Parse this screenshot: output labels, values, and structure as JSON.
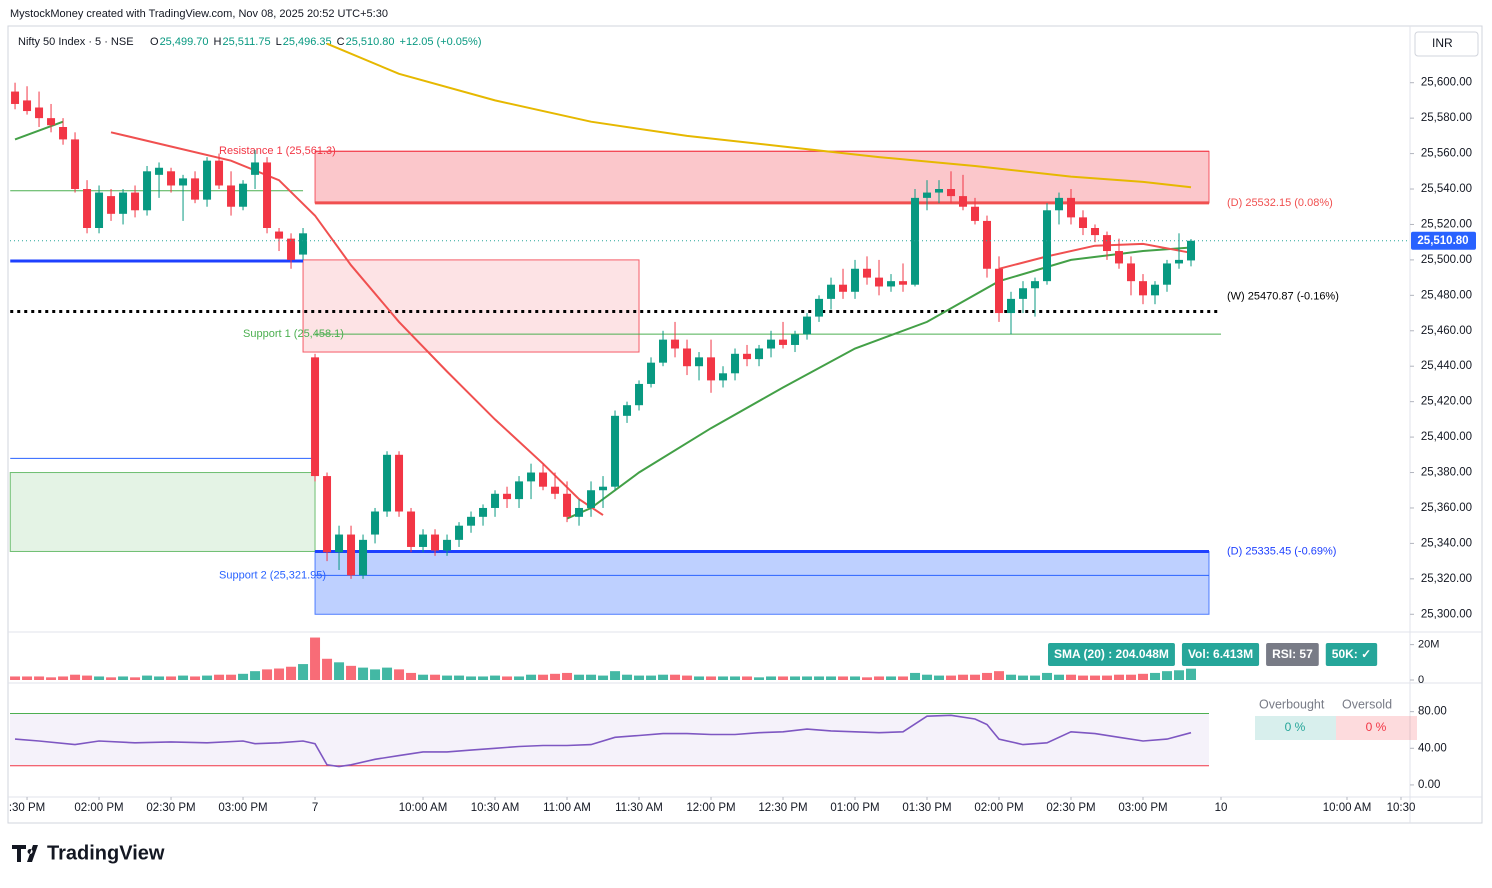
{
  "header": {
    "credit": "MystockMoney created with TradingView.com, Nov 08, 2025 20:52 UTC+5:30",
    "logo": "TradingView"
  },
  "chart_data": [
    {
      "type": "candlestick",
      "title": "Nifty 50 Index · 5 · NSE",
      "ohlc_legend": [
        {
          "label": "O",
          "value": "25,499.70"
        },
        {
          "label": "H",
          "value": "25,511.75"
        },
        {
          "label": "L",
          "value": "25,496.35"
        },
        {
          "label": "C",
          "value": "25,510.80"
        },
        {
          "label": "",
          "value": "+12.05 (+0.05%)"
        }
      ],
      "currency": "INR",
      "last_price_label": "25,510.80",
      "x": [
        0,
        1,
        2,
        3,
        4,
        5,
        6,
        7,
        8,
        9,
        10,
        11,
        12,
        13,
        14,
        15,
        16,
        17,
        18,
        19,
        20,
        21,
        22,
        23,
        24,
        25,
        26,
        27,
        28,
        29,
        30,
        31,
        32,
        33,
        34,
        35,
        36,
        37,
        38,
        39,
        40,
        41,
        42,
        43,
        44,
        45,
        46,
        47,
        48,
        49,
        50,
        51,
        52,
        53,
        54,
        55,
        56,
        57,
        58,
        59,
        60,
        61,
        62,
        63,
        64,
        65,
        66,
        67,
        68,
        69,
        70,
        71,
        72,
        73,
        74,
        75,
        76,
        77,
        78,
        79,
        80,
        81,
        82,
        83,
        84,
        85,
        86,
        87,
        88,
        89,
        90,
        91,
        92,
        93,
        94,
        95,
        96,
        97,
        98
      ],
      "open": [
        25595,
        25590,
        25586,
        25580,
        25575,
        25568,
        25540,
        25518,
        25536,
        25526,
        25538,
        25528,
        25548,
        25550,
        25542,
        25546,
        25534,
        25556,
        25542,
        25530,
        25548,
        25555,
        25516,
        25512,
        25503,
        25445,
        25378,
        25335,
        25345,
        25322,
        25345,
        25358,
        25390,
        25358,
        25338,
        25345,
        25336,
        25342,
        25350,
        25355,
        25360,
        25368,
        25365,
        25375,
        25380,
        25372,
        25368,
        25355,
        25360,
        25370,
        25372,
        25412,
        25418,
        25430,
        25442,
        25455,
        25450,
        25440,
        25445,
        25432,
        25436,
        25447,
        25444,
        25450,
        25455,
        25452,
        25458,
        25468,
        25478,
        25486,
        25482,
        25495,
        25490,
        25485,
        25488,
        25486,
        25535,
        25538,
        25540,
        25536,
        25530,
        25522,
        25495,
        25470,
        25478,
        25484,
        25488,
        25528,
        25535,
        25524,
        25518,
        25514,
        25505,
        25498,
        25488,
        25480,
        25486,
        25498,
        25499.7
      ],
      "high": [
        25600,
        25598,
        25595,
        25588,
        25580,
        25572,
        25545,
        25542,
        25540,
        25540,
        25542,
        25553,
        25555,
        25552,
        25548,
        25550,
        25558,
        25560,
        25550,
        25545,
        25562,
        25558,
        25518,
        25515,
        25518,
        25447,
        25380,
        25350,
        25350,
        25345,
        25360,
        25392,
        25392,
        25360,
        25348,
        25348,
        25345,
        25352,
        25358,
        25362,
        25370,
        25372,
        25378,
        25385,
        25385,
        25380,
        25375,
        25365,
        25375,
        25378,
        25415,
        25420,
        25432,
        25445,
        25460,
        25465,
        25455,
        25448,
        25455,
        25440,
        25450,
        25452,
        25452,
        25460,
        25465,
        25460,
        25470,
        25480,
        25490,
        25495,
        25500,
        25502,
        25500,
        25492,
        25498,
        25540,
        25545,
        25545,
        25550,
        25548,
        25535,
        25525,
        25502,
        25482,
        25488,
        25490,
        25532,
        25538,
        25540,
        25528,
        25520,
        25516,
        25512,
        25502,
        25492,
        25488,
        25500,
        25515,
        25511.75
      ],
      "low": [
        25585,
        25582,
        25575,
        25572,
        25565,
        25538,
        25515,
        25515,
        25522,
        25520,
        25524,
        25525,
        25535,
        25538,
        25522,
        25532,
        25530,
        25540,
        25525,
        25528,
        25540,
        25515,
        25505,
        25495,
        25500,
        25375,
        25330,
        25325,
        25320,
        25320,
        25340,
        25355,
        25355,
        25335,
        25335,
        25333,
        25333,
        25338,
        25346,
        25350,
        25355,
        25360,
        25360,
        25365,
        25370,
        25365,
        25352,
        25350,
        25355,
        25360,
        25370,
        25408,
        25415,
        25428,
        25440,
        25445,
        25435,
        25432,
        25425,
        25428,
        25432,
        25440,
        25440,
        25445,
        25450,
        25448,
        25455,
        25465,
        25472,
        25478,
        25478,
        25486,
        25480,
        25482,
        25482,
        25485,
        25528,
        25532,
        25532,
        25528,
        25520,
        25490,
        25465,
        25458,
        25470,
        25468,
        25486,
        25520,
        25520,
        25514,
        25510,
        25500,
        25495,
        25480,
        25475,
        25475,
        25482,
        25495,
        25496.35
      ],
      "close": [
        25588,
        25584,
        25580,
        25576,
        25568,
        25540,
        25518,
        25538,
        25526,
        25538,
        25528,
        25550,
        25552,
        25542,
        25546,
        25534,
        25556,
        25542,
        25530,
        25543,
        25555,
        25518,
        25512,
        25500,
        25515,
        25378,
        25335,
        25345,
        25322,
        25342,
        25358,
        25390,
        25358,
        25338,
        25345,
        25336,
        25342,
        25350,
        25355,
        25360,
        25368,
        25365,
        25375,
        25380,
        25372,
        25368,
        25355,
        25360,
        25370,
        25372,
        25412,
        25418,
        25430,
        25442,
        25455,
        25450,
        25440,
        25445,
        25432,
        25436,
        25447,
        25444,
        25450,
        25455,
        25452,
        25458,
        25468,
        25478,
        25486,
        25482,
        25495,
        25490,
        25485,
        25488,
        25486,
        25535,
        25538,
        25540,
        25536,
        25530,
        25522,
        25495,
        25470,
        25478,
        25484,
        25488,
        25528,
        25535,
        25524,
        25518,
        25514,
        25505,
        25498,
        25488,
        25480,
        25486,
        25498,
        25500,
        25510.8
      ],
      "up_color": "#089981",
      "down_color": "#f23645",
      "lines": [
        {
          "color": "#43a047",
          "x": [
            0,
            4,
            5,
            46,
            48,
            52,
            58,
            64,
            70,
            76,
            82,
            88,
            94,
            98
          ],
          "values": [
            25568,
            25578,
            null,
            25354,
            25360,
            25380,
            25405,
            25428,
            25450,
            25465,
            25488,
            25500,
            25505,
            25507
          ]
        },
        {
          "color": "#f05050",
          "x": [
            8,
            13,
            18,
            22,
            25,
            28,
            32,
            36,
            40,
            44,
            47,
            49,
            50,
            82,
            86,
            90,
            94,
            98
          ],
          "values": [
            25572,
            25564,
            25556,
            25545,
            25525,
            25497,
            25465,
            25437,
            25410,
            25385,
            25365,
            25356,
            null,
            25495,
            25502,
            25508,
            25509,
            25504
          ]
        },
        {
          "color": "#e6b800",
          "x": [
            26,
            32,
            40,
            48,
            56,
            64,
            72,
            80,
            88,
            94,
            98
          ],
          "values": [
            25622,
            25605,
            25590,
            25578,
            25570,
            25564,
            25558,
            25553,
            25547,
            25544,
            25541
          ]
        }
      ],
      "zones": [
        {
          "x": [
            25,
            99.5
          ],
          "range": [
            25532.15,
            25561.3
          ],
          "fill": "rgba(242,54,69,0.28)"
        },
        {
          "x": [
            24,
            52
          ],
          "range": [
            25448,
            25500
          ],
          "fill": "rgba(242,54,69,0.14)"
        },
        {
          "x": [
            -0.4,
            25
          ],
          "range": [
            25335.45,
            25380
          ],
          "fill": "rgba(76,175,80,0.15)"
        },
        {
          "x": [
            25,
            99.5
          ],
          "range": [
            25300,
            25335.45
          ],
          "fill": "rgba(41,98,255,0.3)"
        }
      ],
      "levels": [
        {
          "label": "Resistance 1 (25,561.3)",
          "value": 25561.3,
          "x": [
            25,
            99.5
          ],
          "color": "#f23645",
          "width": 1,
          "label_x": 17
        },
        {
          "label": "(D) 25532.15 (0.08%)",
          "value": 25532.15,
          "x": [
            25,
            99.5
          ],
          "color": "#f05050",
          "width": 3,
          "label_x": 101
        },
        {
          "label": "(W) 25470.87 (-0.16%)",
          "value": 25470.87,
          "x": [
            -0.4,
            100.5
          ],
          "color": "#000000",
          "width": 3,
          "dash": true,
          "label_x": 101
        },
        {
          "label": "Support 1 (25,458.1)",
          "value": 25458.1,
          "x": [
            25,
            100.5
          ],
          "color": "#4caf50",
          "width": 1,
          "label_x": 19
        },
        {
          "label": "(D) 25335.45 (-0.69%)",
          "value": 25335.45,
          "x": [
            25,
            99.5
          ],
          "color": "#1e40ff",
          "width": 3,
          "label_x": 101
        },
        {
          "label": "Support 2 (25,321.95)",
          "value": 25321.95,
          "x": [
            25,
            99.5
          ],
          "color": "#2962ff",
          "width": 1,
          "label_x": 17
        },
        {
          "value": 25539,
          "x": [
            -0.4,
            24
          ],
          "color": "#4caf50",
          "width": 1
        },
        {
          "value": 25499.4,
          "x": [
            -0.4,
            24
          ],
          "color": "#1e40ff",
          "width": 3
        },
        {
          "value": 25388,
          "x": [
            -0.4,
            25
          ],
          "color": "#2962ff",
          "width": 1
        }
      ],
      "xlim": [
        -0.42,
        116.25
      ],
      "ylim": [
        25290,
        25632
      ],
      "yticks": [
        {
          "value": 25300,
          "label": "25,300.00"
        },
        {
          "value": 25320,
          "label": "25,320.00"
        },
        {
          "value": 25340,
          "label": "25,340.00"
        },
        {
          "value": 25360,
          "label": "25,360.00"
        },
        {
          "value": 25380,
          "label": "25,380.00"
        },
        {
          "value": 25400,
          "label": "25,400.00"
        },
        {
          "value": 25420,
          "label": "25,420.00"
        },
        {
          "value": 25440,
          "label": "25,440.00"
        },
        {
          "value": 25460,
          "label": "25,460.00"
        },
        {
          "value": 25480,
          "label": "25,480.00"
        },
        {
          "value": 25500,
          "label": "25,500.00"
        },
        {
          "value": 25520,
          "label": "25,520.00"
        },
        {
          "value": 25540,
          "label": "25,540.00"
        },
        {
          "value": 25560,
          "label": "25,560.00"
        },
        {
          "value": 25580,
          "label": "25,580.00"
        },
        {
          "value": 25600,
          "label": "25,600.00"
        }
      ],
      "xticks": [
        {
          "value": 1,
          "label": ":30 PM"
        },
        {
          "value": 7,
          "label": "02:00 PM"
        },
        {
          "value": 13,
          "label": "02:30 PM"
        },
        {
          "value": 19,
          "label": "03:00 PM"
        },
        {
          "value": 25,
          "label": "7"
        },
        {
          "value": 34,
          "label": "10:00 AM"
        },
        {
          "value": 40,
          "label": "10:30 AM"
        },
        {
          "value": 46,
          "label": "11:00 AM"
        },
        {
          "value": 52,
          "label": "11:30 AM"
        },
        {
          "value": 58,
          "label": "12:00 PM"
        },
        {
          "value": 64,
          "label": "12:30 PM"
        },
        {
          "value": 70,
          "label": "01:00 PM"
        },
        {
          "value": 76,
          "label": "01:30 PM"
        },
        {
          "value": 82,
          "label": "02:00 PM"
        },
        {
          "value": 88,
          "label": "02:30 PM"
        },
        {
          "value": 94,
          "label": "03:00 PM"
        },
        {
          "value": 100.5,
          "label": "10"
        },
        {
          "value": 111,
          "label": "10:00 AM"
        },
        {
          "value": 115.5,
          "label": "10:30"
        }
      ]
    },
    {
      "type": "bar",
      "values": [
        2,
        2,
        2,
        1.5,
        2,
        3,
        2.5,
        2,
        1.5,
        2,
        1.5,
        2.5,
        2,
        2,
        2.5,
        2,
        2.5,
        3,
        3,
        3.5,
        5,
        6,
        6.5,
        7.5,
        9,
        24,
        12,
        10,
        8,
        7,
        6,
        7,
        6,
        4,
        3,
        3,
        2.5,
        2.5,
        2,
        2,
        2.5,
        2,
        2,
        3,
        3,
        3.5,
        4,
        3,
        3,
        2.5,
        5,
        3,
        2.5,
        2.5,
        3,
        3,
        2.5,
        2,
        2,
        2,
        2,
        2,
        1.5,
        2,
        2,
        2,
        2,
        2,
        2,
        2,
        2,
        1.5,
        2,
        2,
        2,
        4,
        3,
        2.5,
        2.5,
        3,
        3,
        4,
        5,
        3,
        2.5,
        2.5,
        4,
        3,
        3,
        2.5,
        2.5,
        2.5,
        3,
        3,
        3.5,
        4,
        5,
        5.5,
        6.413
      ],
      "ylim": [
        0,
        26
      ],
      "yticks": [
        0,
        {
          "value": 20,
          "label": "20M"
        }
      ],
      "badges": [
        {
          "text": "SMA (20) : 204.048M",
          "color": "#26a69a"
        },
        {
          "text": "Vol: 6.413M",
          "color": "#26a69a"
        },
        {
          "text": "RSI: 57",
          "color": "#787b86"
        },
        {
          "text": "50K: ✓",
          "color": "#26a69a"
        }
      ]
    },
    {
      "type": "line",
      "color": "#7e57c2",
      "x": [
        0,
        2,
        5,
        7,
        10,
        13,
        16,
        19,
        20,
        22,
        24,
        25,
        26,
        27,
        28,
        30,
        32,
        34,
        36,
        38,
        40,
        42,
        44,
        46,
        48,
        50,
        52,
        54,
        56,
        58,
        60,
        62,
        64,
        66,
        68,
        70,
        72,
        74,
        76,
        78,
        80,
        81,
        82,
        84,
        86,
        88,
        90,
        92,
        94,
        96,
        98
      ],
      "values": [
        50,
        48,
        44,
        48,
        46,
        47,
        46,
        48,
        45,
        46,
        48,
        45,
        22,
        20,
        22,
        28,
        32,
        36,
        36,
        38,
        40,
        42,
        43,
        43,
        44,
        52,
        54,
        56,
        56,
        55,
        55,
        57,
        58,
        61,
        59,
        58,
        57,
        58,
        75,
        76,
        72,
        66,
        50,
        44,
        46,
        58,
        56,
        52,
        48,
        50,
        57
      ],
      "ylim": [
        -11,
        108
      ],
      "yticks": [
        {
          "value": 0,
          "label": "0.00"
        },
        {
          "value": 40,
          "label": "40.00"
        },
        {
          "value": 80,
          "label": "80.00"
        }
      ],
      "bands": [
        78,
        21
      ],
      "table": {
        "headers": [
          "Overbought",
          "Oversold"
        ],
        "cells": [
          "0 %",
          "0 %"
        ]
      }
    }
  ]
}
